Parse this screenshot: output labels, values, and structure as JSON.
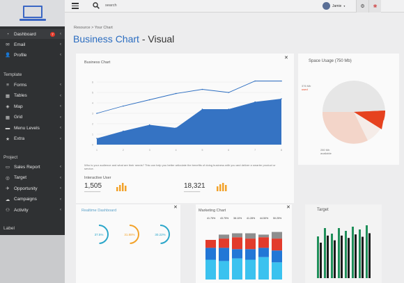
{
  "sidebar": {
    "items": [
      {
        "label": "Dashboard",
        "icon": "dashboard-icon",
        "glyph": "◔",
        "badge": "7"
      },
      {
        "label": "Email",
        "icon": "email-icon",
        "glyph": "✉"
      },
      {
        "label": "Profile",
        "icon": "user-icon",
        "glyph": "👤"
      }
    ],
    "template_label": "Template",
    "template_items": [
      {
        "label": "Forms",
        "icon": "forms-icon",
        "glyph": "≡"
      },
      {
        "label": "Tables",
        "icon": "table-icon",
        "glyph": "▦"
      },
      {
        "label": "Map",
        "icon": "map-icon",
        "glyph": "◈"
      },
      {
        "label": "Grid",
        "icon": "grid-icon",
        "glyph": "▦"
      },
      {
        "label": "Menu Levels",
        "icon": "menu-levels-icon",
        "glyph": "▬"
      },
      {
        "label": "Extra",
        "icon": "star-icon",
        "glyph": "★"
      }
    ],
    "project_label": "Project",
    "project_items": [
      {
        "label": "Sales Report",
        "icon": "report-icon",
        "glyph": "▭"
      },
      {
        "label": "Target",
        "icon": "target-icon",
        "glyph": "◎"
      },
      {
        "label": "Opportunity",
        "icon": "opportunity-icon",
        "glyph": "✈"
      },
      {
        "label": "Campaigns",
        "icon": "campaign-icon",
        "glyph": "☁"
      },
      {
        "label": "Activity",
        "icon": "activity-icon",
        "glyph": "⚇"
      }
    ],
    "bottom_label": "Label"
  },
  "topbar": {
    "search_placeholder": "search",
    "user_name": "Jamie"
  },
  "page": {
    "breadcrumb": "Resource > Your Chart",
    "title_main": "Business Chart",
    "title_sub": " - Visual"
  },
  "business_chart": {
    "title": "Business Chart",
    "description": "Who is your audience and what are their needs? This can help you better articulate the benefits of doing business with you and deliver a smarter product or service."
  },
  "stats": {
    "interactive_label": "Interactive User",
    "stat1_value": "1,505",
    "stat2_value": "18,321"
  },
  "space_usage": {
    "title": "Space Usage (750 Mb)",
    "used_label": "376 Mb",
    "used_sub": "used",
    "avail_label": "280 Mb",
    "avail_sub": "available"
  },
  "realtime": {
    "title": "Realtime Dashboard",
    "rings": [
      "37.5%",
      "31.88%",
      "30.22%"
    ]
  },
  "marketing": {
    "title": "Marketing Chart",
    "percents": [
      "41.75%",
      "43.75%",
      "38.10%",
      "41.28%",
      "44.50%",
      "50.25%"
    ]
  },
  "target": {
    "title": "Target"
  },
  "chart_data": {
    "type": "area",
    "title": "Business Chart",
    "x": [
      1,
      2,
      3,
      4,
      5,
      6,
      7,
      8
    ],
    "y_ticks": [
      "0",
      "1",
      "2",
      "3",
      "4",
      "5",
      "6"
    ],
    "ylim": [
      0,
      7
    ],
    "series": [
      {
        "values": [
          3.0,
          3.7,
          4.3,
          4.9,
          5.3,
          5.0,
          6.1,
          6.1
        ],
        "style": "line",
        "color": "#2a6cc0"
      },
      {
        "values": [
          0.6,
          1.3,
          1.9,
          1.6,
          3.4,
          3.4,
          4.1,
          4.4
        ],
        "style": "area",
        "color": "#2a6cc0"
      }
    ]
  },
  "colors": {
    "accent": "#2a6cc0",
    "sidebar_bg": "#2f3133",
    "ring": "#2aa6c9",
    "ring_orange": "#f2a22a",
    "pie_red": "#e6421f"
  }
}
